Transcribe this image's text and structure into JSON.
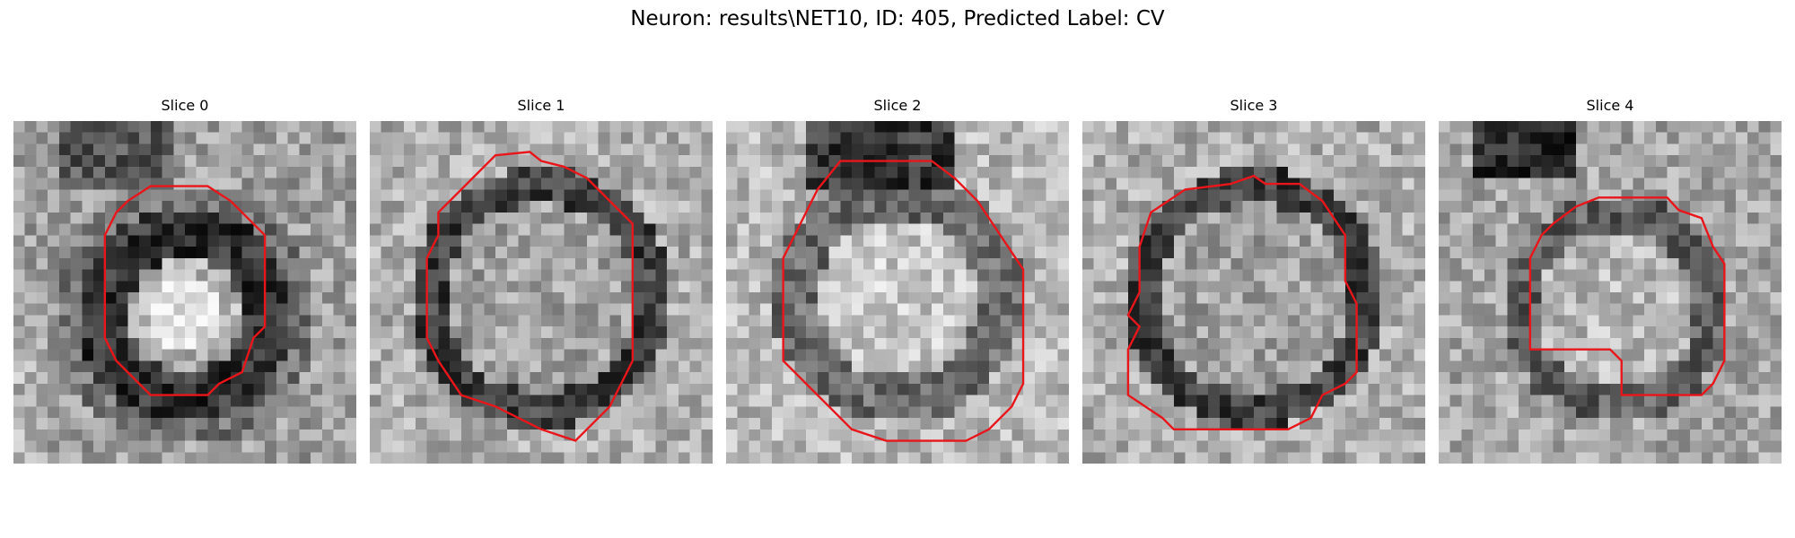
{
  "figure": {
    "title": "Neuron: results\\NET10, ID: 405, Predicted Label: CV"
  },
  "contour_color": "#e8161b",
  "slices": [
    {
      "title": "Slice 0",
      "profile": "bright-center-dark-ring"
    },
    {
      "title": "Slice 1",
      "profile": "dark-ring-mid-center"
    },
    {
      "title": "Slice 2",
      "profile": "faint-ring-bright-center"
    },
    {
      "title": "Slice 3",
      "profile": "dark-ring-mid-center"
    },
    {
      "title": "Slice 4",
      "profile": "dark-top-blob"
    }
  ]
}
